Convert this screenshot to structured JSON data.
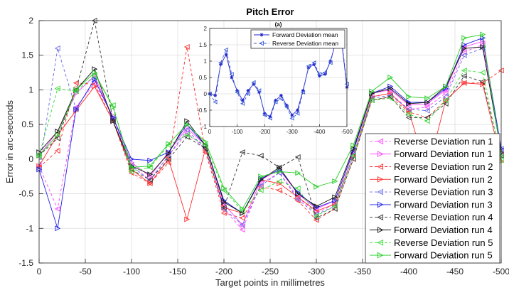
{
  "chart_data": [
    {
      "type": "line",
      "title": "Pitch Error",
      "xlabel": "Target points in millimetres",
      "ylabel": "Error in arc-seconds",
      "xlim": [
        0,
        -500
      ],
      "ylim": [
        -1.5,
        2
      ],
      "xticks": [
        0,
        -50,
        -100,
        -150,
        -200,
        -250,
        -300,
        -350,
        -400,
        -450,
        -500
      ],
      "yticks": [
        -1.5,
        -1,
        -0.5,
        0,
        0.5,
        1,
        1.5,
        2
      ],
      "grid": true,
      "legend_position": "bottom-right",
      "x": [
        0,
        -20,
        -40,
        -60,
        -80,
        -100,
        -120,
        -140,
        -160,
        -180,
        -200,
        -220,
        -240,
        -260,
        -280,
        -300,
        -320,
        -340,
        -360,
        -380,
        -400,
        -420,
        -440,
        -460,
        -480,
        -500
      ],
      "series": [
        {
          "name": "Reverse Deviation run 1",
          "color": "#ff44ff",
          "dash": true,
          "marker": "triangle-left",
          "values": [
            -0.1,
            -0.72,
            0.75,
            1.1,
            0.62,
            -0.1,
            -0.3,
            0.05,
            0.38,
            0.15,
            -0.72,
            -1.02,
            -0.35,
            -0.2,
            -0.55,
            -0.78,
            -0.65,
            0.05,
            0.9,
            0.95,
            0.72,
            0.75,
            0.95,
            1.55,
            1.65,
            0.12
          ]
        },
        {
          "name": "Forward Deviation run 1",
          "color": "#ff44ff",
          "dash": false,
          "marker": "triangle-right",
          "values": [
            0.05,
            0.4,
            0.95,
            1.2,
            0.6,
            -0.05,
            -0.25,
            0.1,
            0.45,
            0.2,
            -0.65,
            -0.95,
            -0.3,
            -0.15,
            -0.5,
            -0.72,
            -0.6,
            0.1,
            0.95,
            1.0,
            0.78,
            0.8,
            1.0,
            1.62,
            1.7,
            0.15
          ]
        },
        {
          "name": "Reverse Deviation run 2",
          "color": "#ff2a2a",
          "dash": true,
          "marker": "triangle-left",
          "values": [
            -0.12,
            0.12,
            1.1,
            1.08,
            0.55,
            -0.2,
            -0.35,
            -0.05,
            1.62,
            0.1,
            -0.78,
            -0.85,
            -0.4,
            -0.45,
            -0.6,
            -0.88,
            -0.72,
            0.0,
            0.85,
            0.9,
            0.68,
            0.6,
            0.85,
            1.1,
            1.1,
            1.28
          ]
        },
        {
          "name": "Forward Deviation run 2",
          "color": "#ff2a2a",
          "dash": false,
          "marker": "triangle-right",
          "values": [
            -0.1,
            0.35,
            0.7,
            1.05,
            0.55,
            -0.15,
            -0.35,
            0.0,
            -0.87,
            0.15,
            -0.7,
            -0.78,
            -0.3,
            -0.35,
            -0.55,
            -0.75,
            -0.65,
            0.05,
            0.9,
            0.95,
            0.7,
            -0.2,
            0.85,
            1.1,
            1.08,
            -0.03
          ]
        },
        {
          "name": "Reverse Deviation run 3",
          "color": "#6a6ae8",
          "dash": true,
          "marker": "triangle-left",
          "values": [
            -0.15,
            1.6,
            0.72,
            1.15,
            0.6,
            -0.1,
            -0.3,
            0.05,
            0.42,
            0.15,
            -0.72,
            -0.95,
            -0.38,
            -0.2,
            -0.58,
            -0.8,
            -0.68,
            0.05,
            0.88,
            0.92,
            0.72,
            0.7,
            0.9,
            1.5,
            1.6,
            0.15
          ]
        },
        {
          "name": "Forward Deviation run 3",
          "color": "#1f1fe8",
          "dash": false,
          "marker": "triangle-right",
          "values": [
            -0.15,
            -1.0,
            0.72,
            1.15,
            0.6,
            0.0,
            -0.02,
            0.1,
            0.5,
            0.2,
            -0.6,
            -0.78,
            -0.28,
            -0.15,
            -0.48,
            -0.7,
            -0.6,
            0.12,
            0.95,
            1.05,
            0.82,
            0.82,
            1.02,
            1.65,
            1.75,
            0.15
          ]
        },
        {
          "name": "Reverse Deviation run 4",
          "color": "#333333",
          "dash": true,
          "marker": "triangle-left",
          "values": [
            0.05,
            0.3,
            1.0,
            2.0,
            0.55,
            -0.15,
            -0.3,
            0.0,
            0.32,
            0.15,
            -0.7,
            0.1,
            0.05,
            -0.12,
            0.03,
            -0.85,
            -0.72,
            0.0,
            0.85,
            0.9,
            0.6,
            0.6,
            0.8,
            1.2,
            1.12,
            0.05
          ]
        },
        {
          "name": "Forward Deviation run 4",
          "color": "#111111",
          "dash": false,
          "marker": "triangle-right",
          "values": [
            0.1,
            0.4,
            1.0,
            1.3,
            0.55,
            -0.1,
            -0.22,
            0.08,
            0.55,
            0.2,
            -0.62,
            -0.78,
            -0.3,
            -0.12,
            -0.5,
            -0.68,
            -0.55,
            0.15,
            0.95,
            1.02,
            0.8,
            0.82,
            1.05,
            1.6,
            1.62,
            0.1
          ]
        },
        {
          "name": "Reverse Deviation run 5",
          "color": "#33dd33",
          "dash": true,
          "marker": "triangle-left",
          "values": [
            0.05,
            1.02,
            0.98,
            1.2,
            0.78,
            -0.18,
            -0.12,
            0.2,
            0.35,
            0.2,
            -0.45,
            -0.75,
            -0.45,
            -0.32,
            -0.42,
            -0.82,
            -0.68,
            0.05,
            0.85,
            0.88,
            0.65,
            0.55,
            0.85,
            1.28,
            1.25,
            -0.02
          ]
        },
        {
          "name": "Forward Deviation run 5",
          "color": "#22cc22",
          "dash": false,
          "marker": "triangle-right",
          "values": [
            0.05,
            0.35,
            1.0,
            1.25,
            0.75,
            -0.12,
            -0.1,
            0.22,
            0.5,
            0.25,
            -0.42,
            -0.72,
            -0.25,
            -0.18,
            -0.2,
            -0.4,
            -0.32,
            0.2,
            0.98,
            1.18,
            0.9,
            0.88,
            1.05,
            1.75,
            1.8,
            0.05
          ]
        }
      ]
    },
    {
      "type": "line",
      "title": "(a)",
      "xlim": [
        0,
        -500
      ],
      "ylim": [
        -1,
        2
      ],
      "xticks": [
        0,
        -100,
        -200,
        -300,
        -400,
        -500
      ],
      "yticks": [
        -1,
        -0.5,
        0,
        0.5,
        1,
        1.5,
        2
      ],
      "grid": true,
      "legend_position": "top-right",
      "x": [
        0,
        -20,
        -40,
        -60,
        -80,
        -100,
        -120,
        -140,
        -160,
        -180,
        -200,
        -220,
        -240,
        -260,
        -280,
        -300,
        -320,
        -340,
        -360,
        -380,
        -400,
        -420,
        -440,
        -460,
        -480,
        -500
      ],
      "series": [
        {
          "name": "Forward Deviation mean",
          "color": "#1f1fcc",
          "dash": false,
          "marker": "star",
          "values": [
            0.0,
            -0.05,
            0.9,
            1.2,
            0.5,
            0.1,
            -0.2,
            0.1,
            0.3,
            0.05,
            -0.6,
            -0.7,
            -0.2,
            -0.05,
            -0.35,
            -0.65,
            -0.5,
            0.1,
            0.8,
            0.9,
            0.55,
            0.6,
            1.0,
            1.6,
            1.65,
            0.2
          ]
        },
        {
          "name": "Reverse Deviation mean",
          "color": "#3a5ad8",
          "dash": true,
          "marker": "triangle-left",
          "values": [
            0.0,
            -0.25,
            0.95,
            1.35,
            0.6,
            0.05,
            -0.3,
            0.0,
            0.35,
            0.1,
            -0.65,
            -0.75,
            -0.25,
            -0.15,
            -0.4,
            -0.75,
            -0.6,
            0.05,
            0.85,
            0.95,
            0.6,
            0.65,
            0.95,
            1.65,
            1.7,
            0.3
          ]
        }
      ]
    }
  ]
}
